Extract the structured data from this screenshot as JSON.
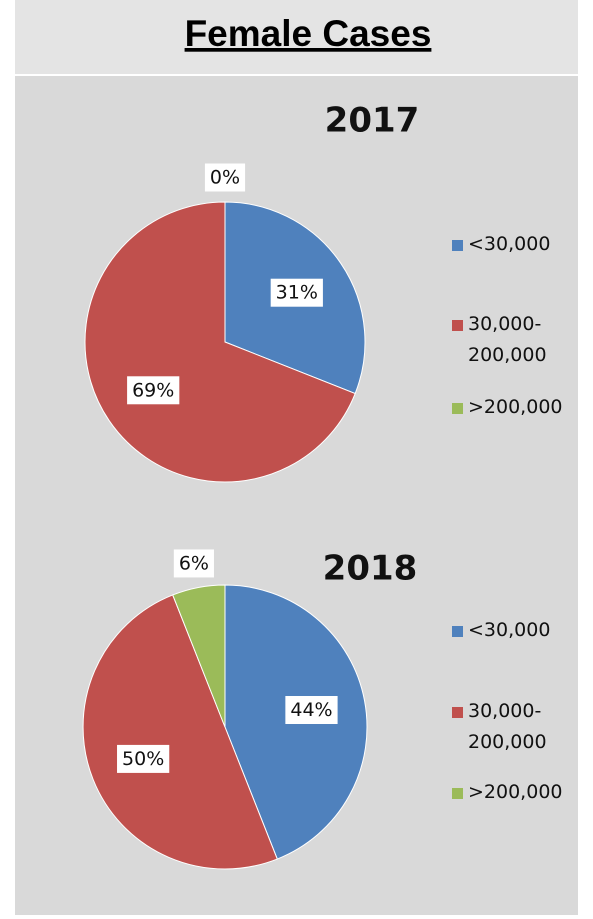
{
  "title": "Female Cases",
  "chart_data": [
    {
      "type": "pie",
      "title": "2017",
      "categories": [
        "<30,000",
        "30,000-200,000",
        ">200,000"
      ],
      "values": [
        31,
        69,
        0
      ],
      "value_labels": [
        "31%",
        "69%",
        "0%"
      ],
      "colors": [
        "#4f81bd",
        "#c0504d",
        "#9bbb59"
      ],
      "legend": "right"
    },
    {
      "type": "pie",
      "title": "2018",
      "categories": [
        "<30,000",
        "30,000-200,000",
        ">200,000"
      ],
      "values": [
        44,
        50,
        6
      ],
      "value_labels": [
        "44%",
        "50%",
        "6%"
      ],
      "colors": [
        "#4f81bd",
        "#c0504d",
        "#9bbb59"
      ],
      "legend": "right"
    }
  ]
}
